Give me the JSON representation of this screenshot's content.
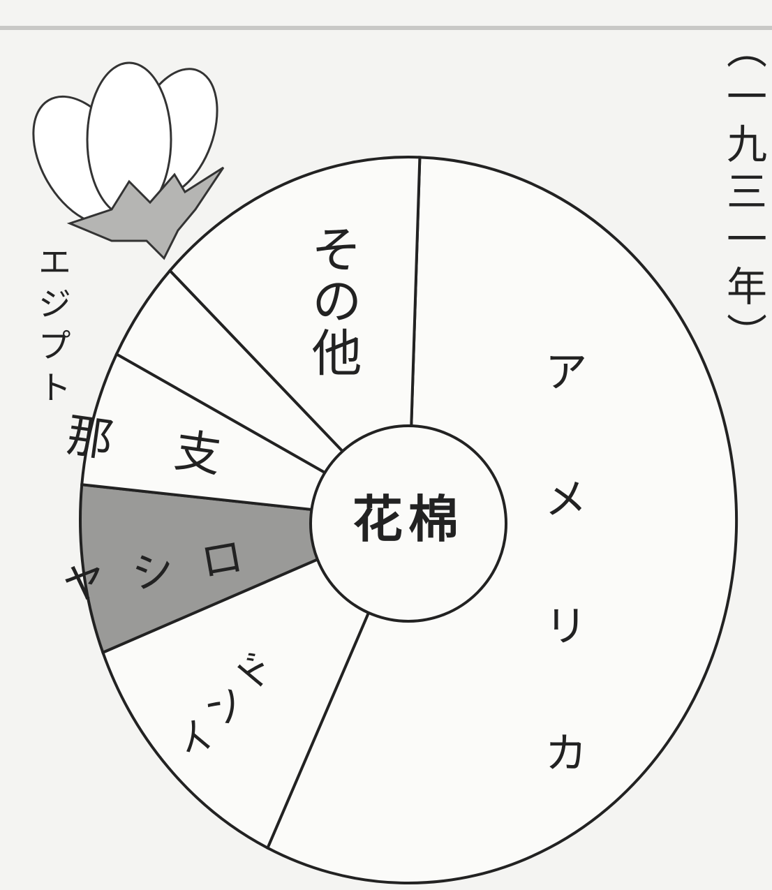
{
  "chart_data": {
    "type": "pie",
    "title": "（一九三一年）",
    "center_label": "棉花",
    "categories": [
      "アメリカ",
      "インド",
      "ロシヤ",
      "支那",
      "エジプト",
      "その他"
    ],
    "values": [
      56.5,
      12,
      7.5,
      6,
      4.5,
      13.5
    ],
    "colors": [
      "#fbfbf9",
      "#fbfbf9",
      "#9a9a98",
      "#fbfbf9",
      "#fbfbf9",
      "#fbfbf9"
    ]
  }
}
